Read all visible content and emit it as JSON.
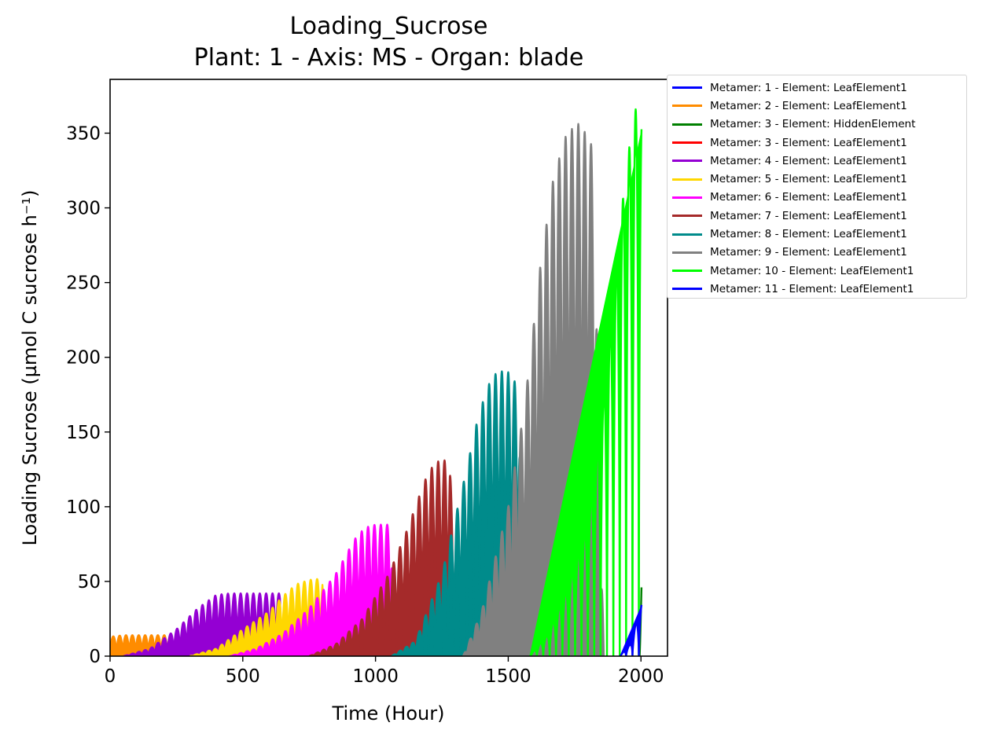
{
  "chart_data": {
    "type": "line",
    "title": "Loading_Sucrose",
    "subtitle": "Plant: 1 - Axis: MS - Organ: blade",
    "xlabel": "Time (Hour)",
    "ylabel": "Loading Sucrose (µmol C sucrose h⁻¹)",
    "xlim": [
      0,
      2100
    ],
    "ylim": [
      0,
      386
    ],
    "xticks": [
      "0",
      "500",
      "1000",
      "1500",
      "2000"
    ],
    "yticks": [
      "0",
      "50",
      "100",
      "150",
      "200",
      "250",
      "300",
      "350"
    ],
    "xtick_values": [
      0,
      500,
      1000,
      1500,
      2000
    ],
    "ytick_values": [
      0,
      50,
      100,
      150,
      200,
      250,
      300,
      350
    ],
    "grid": false,
    "legend_position": "outside-top-right",
    "pattern": "daily oscillation (24 h period) between 0 and an envelope peak",
    "series": [
      {
        "name": "Metamer: 1 - Element: LeafElement1",
        "color": "#0000ff",
        "envelope_x": [
          0,
          12,
          30
        ],
        "envelope_y": [
          12,
          10,
          0
        ]
      },
      {
        "name": "Metamer: 2 - Element: LeafElement1",
        "color": "#ff8c00",
        "envelope_x": [
          0,
          50,
          150,
          230,
          250
        ],
        "envelope_y": [
          13,
          14,
          14,
          14,
          0
        ]
      },
      {
        "name": "Metamer: 3 - Element: HiddenElement",
        "color": "#008000",
        "envelope_x": [
          1995,
          2002
        ],
        "envelope_y": [
          0,
          47
        ]
      },
      {
        "name": "Metamer: 3 - Element: LeafElement1",
        "color": "#ff0000",
        "envelope_x": [],
        "envelope_y": []
      },
      {
        "name": "Metamer: 4 - Element: LeafElement1",
        "color": "#9400d3",
        "envelope_x": [
          50,
          150,
          250,
          330,
          400,
          450,
          550,
          640,
          650
        ],
        "envelope_y": [
          0,
          5,
          18,
          32,
          41,
          42,
          42,
          42,
          0
        ]
      },
      {
        "name": "Metamer: 5 - Element: LeafElement1",
        "color": "#ffd700",
        "envelope_x": [
          300,
          400,
          500,
          600,
          650,
          700,
          750,
          800,
          810
        ],
        "envelope_y": [
          0,
          5,
          18,
          30,
          40,
          48,
          51,
          52,
          0
        ]
      },
      {
        "name": "Metamer: 6 - Element: LeafElement1",
        "color": "#ff00ff",
        "envelope_x": [
          450,
          550,
          650,
          750,
          850,
          920,
          960,
          1000,
          1060,
          1070
        ],
        "envelope_y": [
          0,
          5,
          15,
          32,
          55,
          78,
          86,
          88,
          88,
          0
        ]
      },
      {
        "name": "Metamer: 7 - Element: LeafElement1",
        "color": "#a52a2a",
        "envelope_x": [
          750,
          850,
          950,
          1050,
          1120,
          1160,
          1200,
          1240,
          1280,
          1310
        ],
        "envelope_y": [
          0,
          8,
          25,
          55,
          85,
          105,
          124,
          131,
          131,
          0
        ]
      },
      {
        "name": "Metamer: 8 - Element: LeafElement1",
        "color": "#008b8b",
        "envelope_x": [
          1060,
          1150,
          1250,
          1330,
          1380,
          1420,
          1460,
          1500,
          1540,
          1560
        ],
        "envelope_y": [
          0,
          10,
          55,
          115,
          155,
          180,
          191,
          190,
          180,
          0
        ]
      },
      {
        "name": "Metamer: 9 - Element: LeafElement1",
        "color": "#808080",
        "envelope_x": [
          1330,
          1400,
          1500,
          1560,
          1620,
          1670,
          1720,
          1770,
          1820,
          1860
        ],
        "envelope_y": [
          0,
          30,
          100,
          165,
          260,
          320,
          350,
          357,
          340,
          0
        ]
      },
      {
        "name": "Metamer: 10 - Element: LeafElement1",
        "color": "#00ff00",
        "envelope_x": [
          1580,
          1650,
          1720,
          1800,
          1850,
          1900,
          1940,
          1975,
          1990,
          2002
        ],
        "envelope_y": [
          0,
          15,
          45,
          90,
          160,
          250,
          320,
          365,
          368,
          360
        ]
      },
      {
        "name": "Metamer: 11 - Element: LeafElement1",
        "color": "#0000ff",
        "envelope_x": [
          1920,
          1960,
          1990,
          2002
        ],
        "envelope_y": [
          0,
          8,
          28,
          35
        ]
      }
    ]
  }
}
